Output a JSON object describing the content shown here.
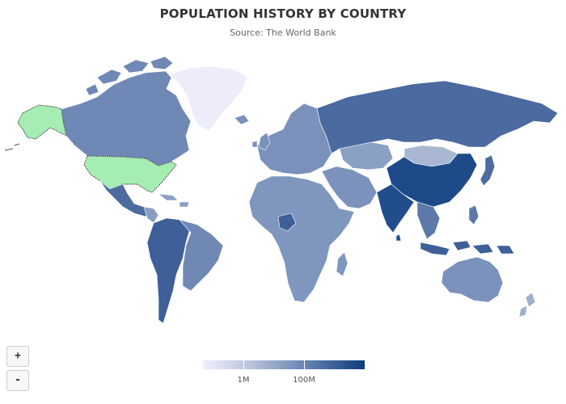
{
  "header": {
    "title": "POPULATION HISTORY BY COUNTRY",
    "subtitle": "Source: The World Bank"
  },
  "zoom": {
    "in_label": "+",
    "out_label": "-"
  },
  "legend": {
    "colors": {
      "min": "#efeffe",
      "mid": "#6b86b3",
      "max": "#0c3c7d"
    },
    "ticks": [
      {
        "label": "1M"
      },
      {
        "label": "100M"
      }
    ]
  },
  "map": {
    "ocean_color": "#ffffff",
    "border_color": "#ffffff",
    "selected_color": "#a6edb4",
    "regions": [
      {
        "name": "Canada",
        "color": "#7088b5"
      },
      {
        "name": "Alaska",
        "color": "#a6edb4",
        "selected": true
      },
      {
        "name": "United States",
        "color": "#a6edb4",
        "selected": true
      },
      {
        "name": "Greenland",
        "color": "#ececfb"
      },
      {
        "name": "Mexico",
        "color": "#4d6b9f"
      },
      {
        "name": "Central America",
        "color": "#8a9ec4"
      },
      {
        "name": "Brazil",
        "color": "#3f5f98"
      },
      {
        "name": "South America",
        "color": "#6f88b4"
      },
      {
        "name": "Europe",
        "color": "#7a91bb"
      },
      {
        "name": "Russia",
        "color": "#4a6aa0"
      },
      {
        "name": "Africa",
        "color": "#7f96be"
      },
      {
        "name": "Nigeria",
        "color": "#3f5f98"
      },
      {
        "name": "Middle East",
        "color": "#7b92bc"
      },
      {
        "name": "Kazakhstan",
        "color": "#8aa0c5"
      },
      {
        "name": "Mongolia",
        "color": "#a9b7d2"
      },
      {
        "name": "China",
        "color": "#1e4a8a"
      },
      {
        "name": "India",
        "color": "#224d8c"
      },
      {
        "name": "Southeast Asia",
        "color": "#5c79aa"
      },
      {
        "name": "Indonesia",
        "color": "#3f5f98"
      },
      {
        "name": "Japan",
        "color": "#4d6b9f"
      },
      {
        "name": "Australia",
        "color": "#7a92bc"
      },
      {
        "name": "New Zealand",
        "color": "#9db0d0"
      }
    ]
  }
}
